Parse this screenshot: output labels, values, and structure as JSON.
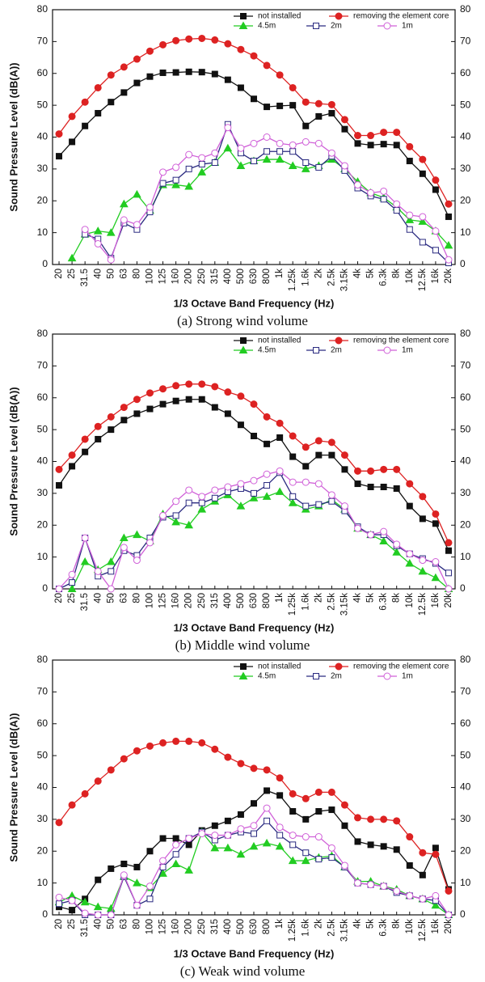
{
  "chart_data": [
    {
      "type": "line",
      "caption": "(a)  Strong  wind  volume",
      "xlabel": "1/3 Octave Band Frequency (Hz)",
      "ylabel": "Sound Pressure Level (dB(A))",
      "categories": [
        "20",
        "25",
        "31.5",
        "40",
        "50",
        "63",
        "80",
        "100",
        "125",
        "160",
        "200",
        "250",
        "315",
        "400",
        "500",
        "630",
        "800",
        "1k",
        "1.25k",
        "1.6k",
        "2k",
        "2.5k",
        "3.15k",
        "4k",
        "5k",
        "6.3k",
        "8k",
        "10k",
        "12.5k",
        "16k",
        "20k"
      ],
      "ylim": [
        0,
        80
      ],
      "yticks": [
        0,
        10,
        20,
        30,
        40,
        50,
        60,
        70,
        80
      ],
      "y2lim": [
        0,
        80
      ],
      "y2ticks": [
        0,
        10,
        20,
        30,
        40,
        50,
        60,
        70,
        80
      ],
      "grid": false,
      "legend": "upper right",
      "series": [
        {
          "name": "not installed",
          "color": "#111111",
          "marker": "square",
          "filled": true,
          "values": [
            34,
            38.5,
            43.5,
            47.5,
            51,
            54,
            57,
            59,
            60.2,
            60.3,
            60.5,
            60.4,
            59.8,
            58,
            55.5,
            52,
            49.5,
            49.8,
            50,
            43.5,
            46.5,
            47.5,
            42.5,
            38,
            37.5,
            37.8,
            37.5,
            32.5,
            28.5,
            23.5,
            15
          ]
        },
        {
          "name": "removing the element core",
          "color": "#dd2222",
          "marker": "circle",
          "filled": true,
          "values": [
            41,
            46.5,
            51,
            55.5,
            59.5,
            62,
            64.5,
            67,
            69,
            70.3,
            70.8,
            71,
            70.5,
            69.3,
            67.5,
            65.5,
            62.5,
            59.5,
            55.5,
            51,
            50.5,
            50.2,
            45.5,
            40.5,
            40.5,
            41.5,
            41.5,
            37,
            33,
            26.5,
            19
          ]
        },
        {
          "name": "4.5m",
          "color": "#22cc22",
          "marker": "triangle",
          "filled": true,
          "values": [
            null,
            2,
            9.5,
            10.5,
            10,
            19,
            22,
            17,
            25,
            25,
            24.5,
            29,
            32,
            36.5,
            31,
            32.5,
            33,
            33,
            31,
            30,
            31,
            33,
            30,
            26,
            22.5,
            21,
            18,
            14,
            13.5,
            10.5,
            6
          ]
        },
        {
          "name": "2m",
          "color": "#2a2a80",
          "marker": "square",
          "filled": false,
          "values": [
            null,
            null,
            9.5,
            8,
            2,
            13,
            11,
            16.5,
            25.5,
            26.5,
            30,
            31.5,
            32,
            44,
            35,
            32.5,
            35.5,
            35.5,
            35.5,
            32,
            30.5,
            34,
            29.5,
            24,
            21.5,
            20.5,
            17,
            11,
            7,
            4.5,
            0.5
          ]
        },
        {
          "name": "1m",
          "color": "#d060d8",
          "marker": "circle",
          "filled": false,
          "values": [
            null,
            null,
            11,
            6.5,
            1.5,
            14,
            12.5,
            18,
            29,
            30.5,
            34.5,
            33.5,
            35,
            43,
            36.5,
            38,
            40,
            38,
            37.5,
            38.5,
            38,
            35,
            31,
            25,
            22.5,
            23,
            19,
            15.5,
            15,
            10.5,
            1.5
          ]
        }
      ]
    },
    {
      "type": "line",
      "caption": "(b)  Middle  wind  volume",
      "xlabel": "1/3 Octave Band Frequency (Hz)",
      "ylabel": "Sound Pressure Level (dB(A))",
      "categories": [
        "20",
        "25",
        "31.5",
        "40",
        "50",
        "63",
        "80",
        "100",
        "125",
        "160",
        "200",
        "250",
        "315",
        "400",
        "500",
        "630",
        "800",
        "1k",
        "1.25k",
        "1.6k",
        "2k",
        "2.5k",
        "3.15k",
        "4k",
        "5k",
        "6.3k",
        "8k",
        "10k",
        "12.5k",
        "16k",
        "20k"
      ],
      "ylim": [
        0,
        80
      ],
      "yticks": [
        0,
        10,
        20,
        30,
        40,
        50,
        60,
        70,
        80
      ],
      "y2lim": [
        0,
        80
      ],
      "y2ticks": [
        0,
        10,
        20,
        30,
        40,
        50,
        60,
        70,
        80
      ],
      "grid": false,
      "legend": "upper right",
      "series": [
        {
          "name": "not installed",
          "color": "#111111",
          "marker": "square",
          "filled": true,
          "values": [
            32.5,
            38.5,
            43,
            47,
            50,
            53,
            55,
            56.5,
            58,
            59,
            59.5,
            59.5,
            57,
            55,
            51.5,
            48,
            45.5,
            47.5,
            41.5,
            38.5,
            42,
            42,
            37.5,
            33,
            32,
            32,
            31.5,
            26,
            22,
            20.5,
            12
          ]
        },
        {
          "name": "removing the element core",
          "color": "#dd2222",
          "marker": "circle",
          "filled": true,
          "values": [
            37.5,
            42,
            47,
            51,
            54,
            57,
            59.5,
            61.5,
            62.8,
            63.8,
            64.3,
            64.3,
            63.5,
            61.8,
            60.5,
            58,
            54,
            52,
            48,
            44.5,
            46.5,
            46,
            42,
            37,
            37,
            37.5,
            37.5,
            33,
            29,
            23.5,
            14.5
          ]
        },
        {
          "name": "4.5m",
          "color": "#22cc22",
          "marker": "triangle",
          "filled": true,
          "values": [
            null,
            0,
            8.5,
            6,
            8.5,
            16,
            17,
            15,
            23.5,
            21,
            20,
            25,
            27.5,
            29.5,
            26,
            28.5,
            29,
            30.5,
            27,
            25,
            26,
            28,
            25,
            19,
            17,
            15,
            11.5,
            8,
            5.5,
            3.5,
            0
          ]
        },
        {
          "name": "2m",
          "color": "#2a2a80",
          "marker": "square",
          "filled": false,
          "values": [
            0,
            2,
            16,
            4,
            5.5,
            12,
            10.5,
            16,
            22.5,
            23,
            27,
            27,
            28.5,
            30.5,
            31.5,
            30,
            32.5,
            36.5,
            29,
            26,
            26.5,
            27.5,
            24.5,
            19.5,
            17,
            17,
            13.5,
            11,
            9.5,
            8,
            5
          ]
        },
        {
          "name": "1m",
          "color": "#d060d8",
          "marker": "circle",
          "filled": false,
          "values": [
            0,
            4.5,
            16,
            5.5,
            0,
            13,
            9,
            14.5,
            23,
            27.5,
            31,
            29,
            31,
            32,
            33,
            34,
            36,
            37,
            33.5,
            33.5,
            33,
            29.5,
            26,
            19,
            17,
            18,
            14,
            11,
            9,
            8.5,
            0
          ]
        }
      ]
    },
    {
      "type": "line",
      "caption": "(c)  Weak  wind  volume",
      "xlabel": "1/3 Octave Band Frequency (Hz)",
      "ylabel": "Sound Pressure Level (dB(A))",
      "categories": [
        "20",
        "25",
        "31.5",
        "40",
        "50",
        "63",
        "80",
        "100",
        "125",
        "160",
        "200",
        "250",
        "315",
        "400",
        "500",
        "630",
        "800",
        "1k",
        "1.25k",
        "1.6k",
        "2k",
        "2.5k",
        "3.15k",
        "4k",
        "5k",
        "6.3k",
        "8k",
        "10k",
        "12.5k",
        "16k",
        "20k"
      ],
      "ylim": [
        0,
        80
      ],
      "yticks": [
        0,
        10,
        20,
        30,
        40,
        50,
        60,
        70,
        80
      ],
      "y2lim": [
        0,
        80
      ],
      "y2ticks": [
        0,
        10,
        20,
        30,
        40,
        50,
        60,
        70,
        80
      ],
      "grid": false,
      "legend": "upper right",
      "series": [
        {
          "name": "not installed",
          "color": "#111111",
          "marker": "square",
          "filled": true,
          "values": [
            2.5,
            1.5,
            5,
            11,
            14.5,
            16,
            15,
            20,
            24,
            24,
            22,
            26.5,
            28,
            29.5,
            31.5,
            35,
            39,
            37.5,
            32.5,
            30,
            32.5,
            33,
            28,
            23,
            22,
            21.5,
            20.5,
            15.5,
            12.5,
            21,
            8
          ]
        },
        {
          "name": "removing the element core",
          "color": "#dd2222",
          "marker": "circle",
          "filled": true,
          "values": [
            29,
            34.5,
            38,
            42,
            45.5,
            49,
            51.5,
            53,
            54,
            54.5,
            54.5,
            54,
            52,
            49.5,
            47.5,
            46,
            45.5,
            43,
            38,
            36.5,
            38.5,
            38.5,
            34.5,
            30.5,
            30,
            30,
            29.5,
            24.5,
            19.5,
            19,
            7.5
          ]
        },
        {
          "name": "4.5m",
          "color": "#22cc22",
          "marker": "triangle",
          "filled": true,
          "values": [
            4,
            6,
            4,
            2.5,
            2,
            12,
            10,
            8.5,
            13,
            16,
            14,
            26,
            21,
            21,
            19,
            21.5,
            22.5,
            21.5,
            17,
            17,
            18,
            18.5,
            15,
            10.5,
            10.5,
            9,
            8,
            6,
            5,
            3,
            0
          ]
        },
        {
          "name": "2m",
          "color": "#2a2a80",
          "marker": "square",
          "filled": false,
          "values": [
            3.5,
            4.5,
            0,
            0,
            0,
            12,
            3,
            5,
            15,
            19,
            24,
            26,
            23.5,
            25,
            26,
            25.5,
            29.5,
            25,
            22,
            19.5,
            17.5,
            18,
            15,
            10,
            9.5,
            9,
            7,
            6,
            5,
            4.5,
            0
          ]
        },
        {
          "name": "1m",
          "color": "#d060d8",
          "marker": "circle",
          "filled": false,
          "values": [
            5.5,
            4.5,
            0.5,
            0,
            0,
            12.5,
            3,
            9,
            17,
            22,
            24,
            25.5,
            25,
            25,
            27,
            28,
            33.5,
            27.5,
            25,
            24.5,
            24.5,
            21,
            15.5,
            10,
            9.5,
            9,
            7.5,
            6,
            5,
            6,
            0
          ]
        }
      ]
    }
  ]
}
